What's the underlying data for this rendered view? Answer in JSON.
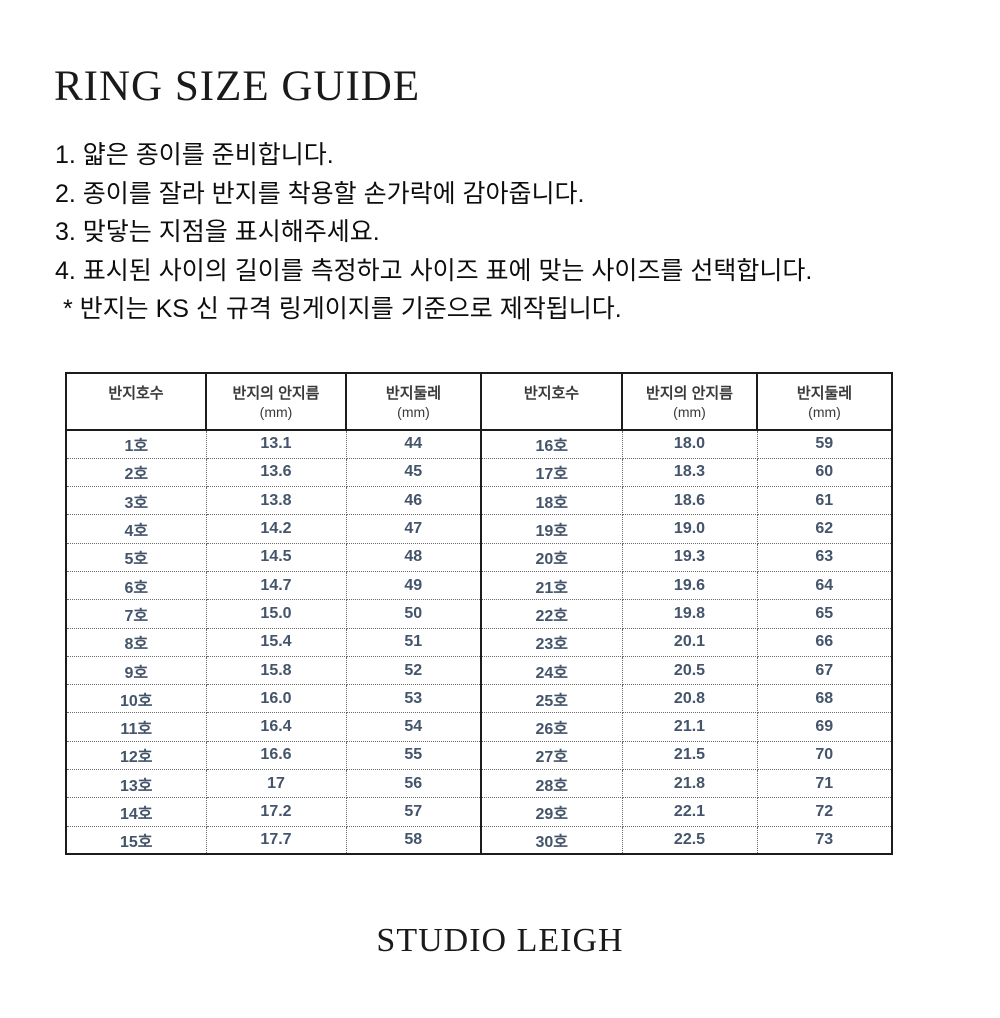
{
  "page": {
    "title": "RING SIZE GUIDE",
    "brand": "STUDIO LEIGH",
    "background_color": "#ffffff"
  },
  "instructions": {
    "lines": [
      "1. 얇은 종이를 준비합니다.",
      "2. 종이를 잘라 반지를 착용할 손가락에 감아줍니다.",
      "3. 맞닿는 지점을 표시해주세요.",
      "4. 표시된 사이의 길이를 측정하고 사이즈 표에 맞는 사이즈를 선택합니다.",
      "* 반지는 KS 신 규격 링게이지를 기준으로 제작됩니다."
    ]
  },
  "size_table": {
    "column_headers": [
      {
        "label": "반지호수",
        "sub": ""
      },
      {
        "label": "반지의 안지름",
        "sub": "(mm)"
      },
      {
        "label": "반지둘레",
        "sub": "(mm)"
      },
      {
        "label": "반지호수",
        "sub": ""
      },
      {
        "label": "반지의 안지름",
        "sub": "(mm)"
      },
      {
        "label": "반지둘레",
        "sub": "(mm)"
      }
    ],
    "rows": [
      {
        "left": [
          "1호",
          "13.1",
          "44"
        ],
        "right": [
          "16호",
          "18.0",
          "59"
        ]
      },
      {
        "left": [
          "2호",
          "13.6",
          "45"
        ],
        "right": [
          "17호",
          "18.3",
          "60"
        ]
      },
      {
        "left": [
          "3호",
          "13.8",
          "46"
        ],
        "right": [
          "18호",
          "18.6",
          "61"
        ]
      },
      {
        "left": [
          "4호",
          "14.2",
          "47"
        ],
        "right": [
          "19호",
          "19.0",
          "62"
        ]
      },
      {
        "left": [
          "5호",
          "14.5",
          "48"
        ],
        "right": [
          "20호",
          "19.3",
          "63"
        ]
      },
      {
        "left": [
          "6호",
          "14.7",
          "49"
        ],
        "right": [
          "21호",
          "19.6",
          "64"
        ]
      },
      {
        "left": [
          "7호",
          "15.0",
          "50"
        ],
        "right": [
          "22호",
          "19.8",
          "65"
        ]
      },
      {
        "left": [
          "8호",
          "15.4",
          "51"
        ],
        "right": [
          "23호",
          "20.1",
          "66"
        ]
      },
      {
        "left": [
          "9호",
          "15.8",
          "52"
        ],
        "right": [
          "24호",
          "20.5",
          "67"
        ]
      },
      {
        "left": [
          "10호",
          "16.0",
          "53"
        ],
        "right": [
          "25호",
          "20.8",
          "68"
        ]
      },
      {
        "left": [
          "11호",
          "16.4",
          "54"
        ],
        "right": [
          "26호",
          "21.1",
          "69"
        ]
      },
      {
        "left": [
          "12호",
          "16.6",
          "55"
        ],
        "right": [
          "27호",
          "21.5",
          "70"
        ]
      },
      {
        "left": [
          "13호",
          "17",
          "56"
        ],
        "right": [
          "28호",
          "21.8",
          "71"
        ]
      },
      {
        "left": [
          "14호",
          "17.2",
          "57"
        ],
        "right": [
          "29호",
          "22.1",
          "72"
        ]
      },
      {
        "left": [
          "15호",
          "17.7",
          "58"
        ],
        "right": [
          "30호",
          "22.5",
          "73"
        ]
      }
    ]
  },
  "colors": {
    "data_text": "#44546A",
    "header_text": "#3a3a3a",
    "solid_border": "#1c1c1c",
    "dotted_border": "#6b6b6b"
  }
}
